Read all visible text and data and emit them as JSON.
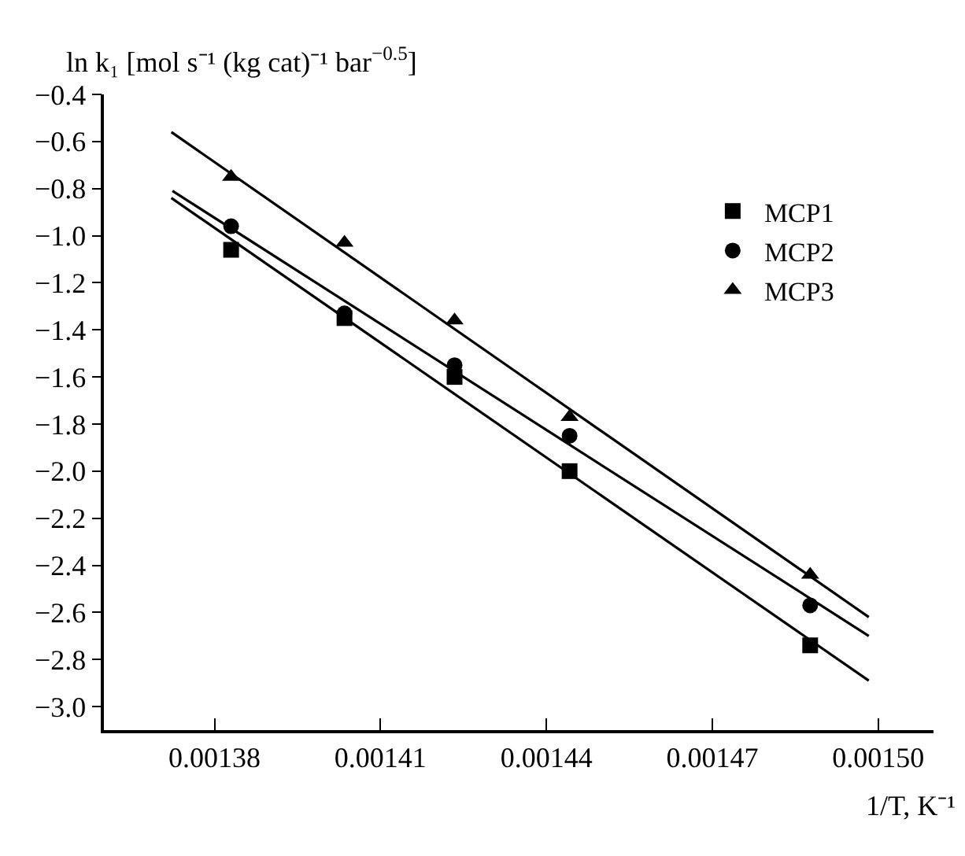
{
  "chart_data": {
    "type": "scatter",
    "xlabel": "1/T, K⁻¹",
    "ylabel": "ln k₁ [mol s⁻¹ (kg cat)⁻¹ bar$^{−0.5}$]",
    "xlim": [
      0.00136,
      0.00151
    ],
    "xticks": [
      0.00138,
      0.00141,
      0.00144,
      0.00147,
      {
        "value": 0.0015,
        "label": "0.00150"
      }
    ],
    "ylim": [
      -3.1,
      -0.4
    ],
    "yticks": [
      {
        "value": -3.0,
        "label": "−3.0"
      },
      -2.8,
      -2.6,
      -2.4,
      -2.2,
      {
        "value": -2.0,
        "label": "−2.0"
      },
      -1.8,
      -1.6,
      -1.4,
      -1.2,
      {
        "value": -1.0,
        "label": "−1.0"
      },
      -0.8,
      -0.6,
      -0.4
    ],
    "legend": "top right",
    "series": [
      {
        "name": "MCP1",
        "color": "#000000",
        "marker": "square",
        "x": [
          0.001383,
          0.0014035,
          0.0014234,
          0.0014442,
          0.0014877
        ],
        "values": [
          -1.06,
          -1.35,
          -1.6,
          -2.0,
          -2.74
        ]
      },
      {
        "name": "MCP2",
        "color": "#000000",
        "marker": "circle",
        "x": [
          0.001383,
          0.0014035,
          0.0014234,
          0.0014442,
          0.0014877
        ],
        "values": [
          -0.96,
          -1.33,
          -1.55,
          -1.85,
          -2.57
        ]
      },
      {
        "name": "MCP3",
        "color": "#000000",
        "marker": "triangle",
        "x": [
          0.001383,
          0.0014035,
          0.0014234,
          0.0014442,
          0.0014877
        ],
        "values": [
          -0.75,
          -1.03,
          -1.36,
          -1.77,
          -2.44
        ]
      },
      {
        "type": "line",
        "color": "#000000",
        "marker": "none",
        "x": [
          0.0013722,
          0.0014983
        ],
        "values": [
          -0.84,
          -2.89
        ]
      },
      {
        "type": "line",
        "color": "#000000",
        "marker": "none",
        "x": [
          0.0013724,
          0.0014983
        ],
        "values": [
          -0.81,
          -2.7
        ]
      },
      {
        "type": "line",
        "color": "#000000",
        "marker": "none",
        "x": [
          0.0013722,
          0.0014983
        ],
        "values": [
          -0.56,
          -2.62
        ]
      }
    ]
  }
}
